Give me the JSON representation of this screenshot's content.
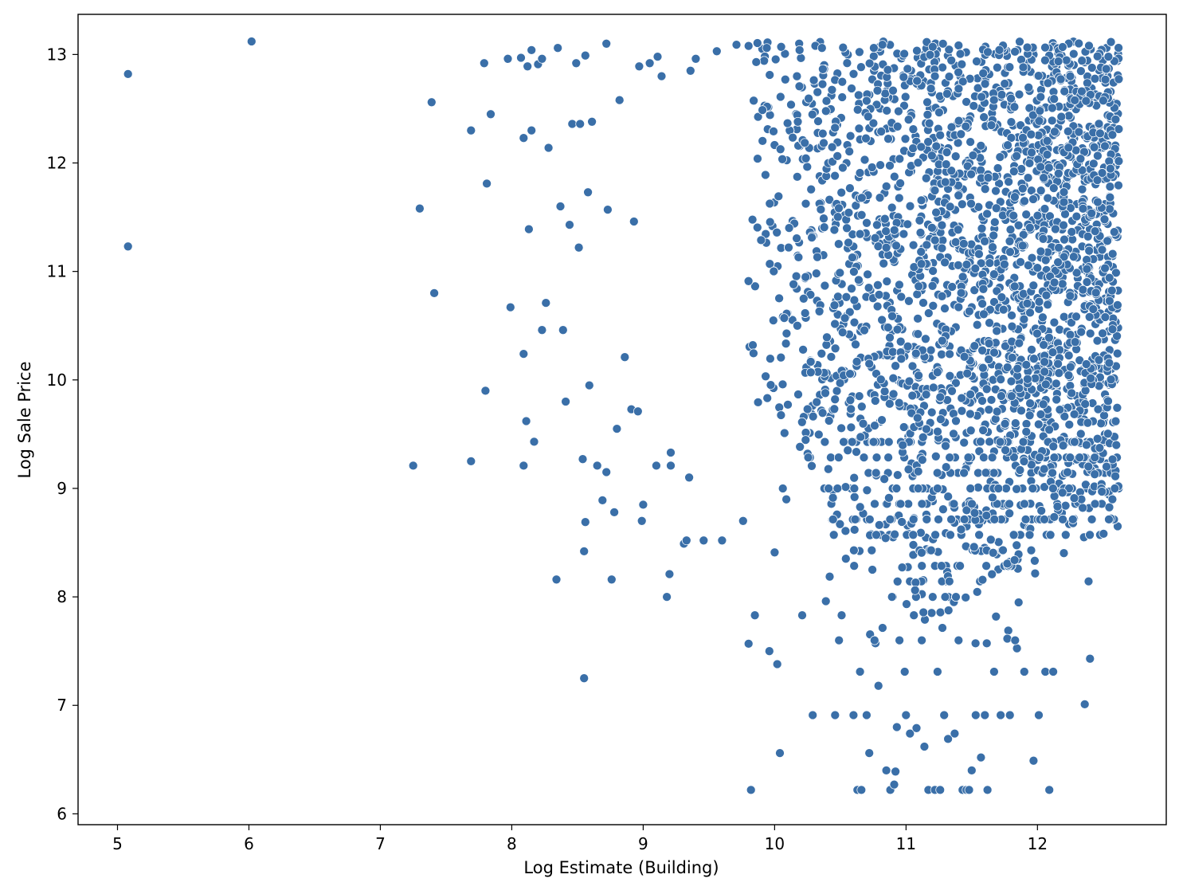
{
  "chart_data": {
    "type": "scatter",
    "title": "",
    "xlabel": "Log Estimate (Building)",
    "ylabel": "Log Sale Price",
    "xlim": [
      4.7,
      12.98
    ],
    "ylim": [
      5.9,
      13.37
    ],
    "xticks": [
      5,
      6,
      7,
      8,
      9,
      10,
      11,
      12
    ],
    "yticks": [
      6,
      7,
      8,
      9,
      10,
      11,
      12,
      13
    ],
    "xtick_labels": [
      "5",
      "6",
      "7",
      "8",
      "9",
      "10",
      "11",
      "12"
    ],
    "ytick_labels": [
      "6",
      "7",
      "8",
      "9",
      "10",
      "11",
      "12",
      "13"
    ],
    "grid": false,
    "legend": "none",
    "marker_color": "#3a6fa8",
    "marker_edge_color": "#ffffff",
    "series": [
      {
        "points": [
          [
            5.08,
            12.82
          ],
          [
            5.08,
            11.23
          ],
          [
            6.02,
            13.12
          ],
          [
            7.25,
            9.21
          ],
          [
            7.3,
            11.58
          ],
          [
            7.39,
            12.56
          ],
          [
            7.41,
            10.8
          ],
          [
            7.69,
            9.25
          ],
          [
            7.69,
            12.3
          ],
          [
            7.79,
            12.92
          ],
          [
            7.8,
            9.9
          ],
          [
            7.81,
            11.81
          ],
          [
            7.84,
            12.45
          ],
          [
            7.97,
            12.96
          ],
          [
            7.99,
            10.67
          ],
          [
            8.07,
            12.97
          ],
          [
            8.09,
            9.21
          ],
          [
            8.09,
            12.23
          ],
          [
            8.09,
            10.24
          ],
          [
            8.11,
            9.62
          ],
          [
            8.12,
            12.89
          ],
          [
            8.13,
            11.39
          ],
          [
            8.15,
            13.04
          ],
          [
            8.15,
            12.3
          ],
          [
            8.17,
            9.43
          ],
          [
            8.2,
            12.91
          ],
          [
            8.23,
            12.96
          ],
          [
            8.23,
            10.46
          ],
          [
            8.26,
            10.71
          ],
          [
            8.28,
            12.14
          ],
          [
            8.34,
            8.16
          ],
          [
            8.35,
            13.06
          ],
          [
            8.37,
            11.6
          ],
          [
            8.39,
            10.46
          ],
          [
            8.41,
            9.8
          ],
          [
            8.44,
            11.43
          ],
          [
            8.46,
            12.36
          ],
          [
            8.49,
            12.92
          ],
          [
            8.51,
            11.22
          ],
          [
            8.52,
            12.36
          ],
          [
            8.54,
            9.27
          ],
          [
            8.55,
            8.42
          ],
          [
            8.55,
            7.25
          ],
          [
            8.56,
            8.69
          ],
          [
            8.56,
            12.99
          ],
          [
            8.58,
            11.73
          ],
          [
            8.59,
            9.95
          ],
          [
            8.61,
            12.38
          ],
          [
            8.65,
            9.21
          ],
          [
            8.69,
            8.89
          ],
          [
            8.72,
            13.1
          ],
          [
            8.72,
            9.15
          ],
          [
            8.73,
            11.57
          ],
          [
            8.76,
            8.16
          ],
          [
            8.78,
            8.78
          ],
          [
            8.8,
            9.55
          ],
          [
            8.82,
            12.58
          ],
          [
            8.86,
            10.21
          ],
          [
            8.91,
            9.73
          ],
          [
            8.93,
            11.46
          ],
          [
            8.96,
            9.71
          ],
          [
            8.97,
            12.89
          ],
          [
            8.99,
            8.7
          ],
          [
            9.0,
            8.85
          ],
          [
            9.05,
            12.92
          ],
          [
            9.1,
            9.21
          ],
          [
            9.11,
            12.98
          ],
          [
            9.14,
            12.8
          ],
          [
            9.18,
            8.0
          ],
          [
            9.2,
            8.21
          ],
          [
            9.21,
            9.21
          ],
          [
            9.21,
            9.33
          ],
          [
            9.31,
            8.49
          ],
          [
            9.33,
            8.52
          ],
          [
            9.35,
            9.1
          ],
          [
            9.36,
            12.85
          ],
          [
            9.4,
            12.96
          ],
          [
            9.46,
            8.52
          ],
          [
            9.56,
            13.03
          ],
          [
            9.6,
            8.52
          ],
          [
            9.71,
            13.09
          ],
          [
            9.76,
            8.7
          ],
          [
            9.82,
            6.22
          ],
          [
            9.85,
            7.83
          ],
          [
            9.86,
            12.93
          ],
          [
            9.94,
            13.06
          ],
          [
            9.96,
            7.5
          ],
          [
            10.0,
            8.41
          ],
          [
            10.02,
            7.38
          ],
          [
            10.04,
            6.56
          ],
          [
            10.05,
            13.07
          ],
          [
            10.19,
            13.04
          ],
          [
            10.21,
            7.83
          ],
          [
            10.29,
            6.91
          ],
          [
            10.31,
            13.08
          ],
          [
            10.36,
            13.06
          ],
          [
            10.39,
            7.96
          ],
          [
            10.46,
            6.91
          ],
          [
            10.49,
            7.6
          ],
          [
            10.51,
            7.83
          ],
          [
            10.6,
            6.91
          ],
          [
            10.63,
            6.22
          ],
          [
            10.65,
            7.31
          ],
          [
            10.66,
            6.22
          ],
          [
            10.7,
            6.91
          ],
          [
            10.72,
            6.56
          ],
          [
            10.76,
            7.6
          ],
          [
            10.79,
            7.18
          ],
          [
            10.82,
            13.09
          ],
          [
            10.85,
            6.4
          ],
          [
            10.88,
            6.22
          ],
          [
            10.91,
            6.27
          ],
          [
            10.92,
            6.39
          ],
          [
            10.93,
            6.8
          ],
          [
            10.95,
            7.6
          ],
          [
            10.99,
            7.31
          ],
          [
            11.0,
            6.91
          ],
          [
            11.03,
            6.74
          ],
          [
            11.06,
            7.83
          ],
          [
            11.08,
            6.79
          ],
          [
            11.12,
            7.6
          ],
          [
            11.14,
            6.62
          ],
          [
            11.17,
            6.22
          ],
          [
            11.22,
            6.22
          ],
          [
            11.24,
            7.31
          ],
          [
            11.26,
            6.22
          ],
          [
            11.29,
            6.91
          ],
          [
            11.32,
            6.69
          ],
          [
            11.37,
            6.74
          ],
          [
            11.4,
            7.6
          ],
          [
            11.43,
            6.22
          ],
          [
            11.46,
            6.22
          ],
          [
            11.48,
            6.22
          ],
          [
            11.5,
            6.4
          ],
          [
            11.53,
            6.91
          ],
          [
            11.57,
            6.52
          ],
          [
            11.6,
            6.91
          ],
          [
            11.62,
            6.22
          ],
          [
            11.67,
            7.31
          ],
          [
            11.72,
            6.91
          ],
          [
            11.79,
            6.91
          ],
          [
            11.83,
            7.6
          ],
          [
            11.9,
            7.31
          ],
          [
            11.97,
            6.49
          ],
          [
            12.01,
            6.91
          ],
          [
            12.06,
            7.31
          ],
          [
            12.09,
            6.22
          ],
          [
            12.12,
            7.31
          ],
          [
            12.28,
            8.91
          ],
          [
            12.36,
            7.01
          ],
          [
            12.4,
            7.43
          ],
          [
            12.49,
            8.97
          ],
          [
            12.54,
            12.98
          ],
          [
            12.57,
            8.9
          ],
          [
            12.6,
            9.4
          ]
        ]
      }
    ],
    "dense_region": {
      "description_free": true,
      "center_x": 11.3,
      "center_y": 10.9,
      "x_range": [
        9.8,
        12.62
      ],
      "y_range": [
        7.5,
        13.12
      ],
      "count": 9000
    }
  }
}
